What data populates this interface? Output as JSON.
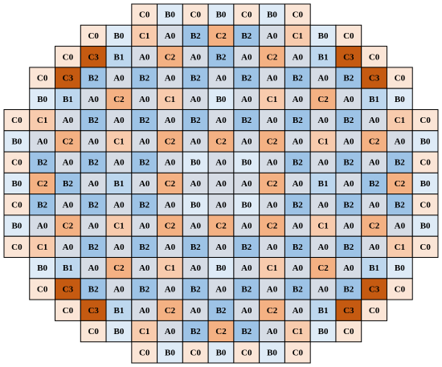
{
  "grid": {
    "colors": {
      "A0": "#d6dce5",
      "B0": "#deebf7",
      "B1": "#bdd7ee",
      "B2": "#9dc3e6",
      "C0": "#fbe5d6",
      "C1": "#f8cbad",
      "C2": "#f4b183",
      "C3": "#c55a11"
    },
    "rows": [
      [
        "C0",
        "B0",
        "C0",
        "B0",
        "C0",
        "B0",
        "C0"
      ],
      [
        "C0",
        "B0",
        "C1",
        "A0",
        "B2",
        "C2",
        "B2",
        "A0",
        "C1",
        "B0",
        "C0"
      ],
      [
        "C0",
        "C3",
        "B1",
        "A0",
        "C2",
        "A0",
        "B2",
        "A0",
        "C2",
        "A0",
        "B1",
        "C3",
        "C0"
      ],
      [
        "C0",
        "C3",
        "B2",
        "A0",
        "B2",
        "A0",
        "B2",
        "A0",
        "B2",
        "A0",
        "B2",
        "A0",
        "B2",
        "C3",
        "C0"
      ],
      [
        "B0",
        "B1",
        "A0",
        "C2",
        "A0",
        "C1",
        "A0",
        "B0",
        "A0",
        "C1",
        "A0",
        "C2",
        "A0",
        "B1",
        "B0"
      ],
      [
        "C0",
        "C1",
        "A0",
        "B2",
        "A0",
        "B2",
        "A0",
        "B2",
        "A0",
        "B2",
        "A0",
        "B2",
        "A0",
        "B2",
        "A0",
        "C1",
        "C0"
      ],
      [
        "B0",
        "A0",
        "C2",
        "A0",
        "C1",
        "A0",
        "C2",
        "A0",
        "C2",
        "A0",
        "C2",
        "A0",
        "C1",
        "A0",
        "C2",
        "A0",
        "B0"
      ],
      [
        "C0",
        "B2",
        "A0",
        "B2",
        "A0",
        "B2",
        "A0",
        "B0",
        "A0",
        "B0",
        "A0",
        "B2",
        "A0",
        "B2",
        "A0",
        "B2",
        "C0"
      ],
      [
        "B0",
        "C2",
        "B2",
        "A0",
        "B1",
        "A0",
        "C2",
        "A0",
        "A0",
        "A0",
        "C2",
        "A0",
        "B1",
        "A0",
        "B2",
        "C2",
        "B0"
      ],
      [
        "C0",
        "B2",
        "A0",
        "B2",
        "A0",
        "B2",
        "A0",
        "B0",
        "A0",
        "B0",
        "A0",
        "B2",
        "A0",
        "B2",
        "A0",
        "B2",
        "C0"
      ],
      [
        "B0",
        "A0",
        "C2",
        "A0",
        "C1",
        "A0",
        "C2",
        "A0",
        "C2",
        "A0",
        "C2",
        "A0",
        "C1",
        "A0",
        "C2",
        "A0",
        "B0"
      ],
      [
        "C0",
        "C1",
        "A0",
        "B2",
        "A0",
        "B2",
        "A0",
        "B2",
        "A0",
        "B2",
        "A0",
        "B2",
        "A0",
        "B2",
        "A0",
        "C1",
        "C0"
      ],
      [
        "B0",
        "B1",
        "A0",
        "C2",
        "A0",
        "C1",
        "A0",
        "B0",
        "A0",
        "C1",
        "A0",
        "C2",
        "A0",
        "B1",
        "B0"
      ],
      [
        "C0",
        "C3",
        "B2",
        "A0",
        "B2",
        "A0",
        "B2",
        "A0",
        "B2",
        "A0",
        "B2",
        "A0",
        "B2",
        "C3",
        "C0"
      ],
      [
        "C0",
        "C3",
        "B1",
        "A0",
        "C2",
        "A0",
        "B2",
        "A0",
        "C2",
        "A0",
        "B1",
        "C3",
        "C0"
      ],
      [
        "C0",
        "B0",
        "C1",
        "A0",
        "B2",
        "C2",
        "B2",
        "A0",
        "C1",
        "B0",
        "C0"
      ],
      [
        "C0",
        "B0",
        "C0",
        "B0",
        "C0",
        "B0",
        "C0"
      ]
    ]
  }
}
